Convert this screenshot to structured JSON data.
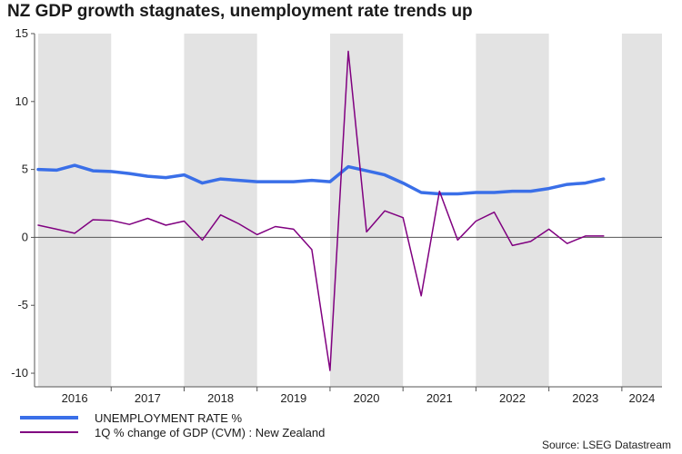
{
  "chart_data": {
    "type": "line",
    "title": "NZ GDP growth stagnates, unemployment rate trends up",
    "x_start": 2016.0,
    "x_step": 0.25,
    "x_range": [
      2015.95,
      2024.55
    ],
    "ylim": [
      -11,
      15
    ],
    "yticks": [
      -10,
      -5,
      0,
      5,
      10,
      15
    ],
    "xticks": [
      "2016",
      "2017",
      "2018",
      "2019",
      "2020",
      "2021",
      "2022",
      "2023",
      "2024"
    ],
    "shaded_years": [
      2016,
      2018,
      2020,
      2022,
      2024
    ],
    "series": [
      {
        "name": "UNEMPLOYMENT RATE %",
        "color": "#3a6fe8",
        "values": [
          5.0,
          4.95,
          5.3,
          4.9,
          4.85,
          4.7,
          4.5,
          4.4,
          4.6,
          4.0,
          4.3,
          4.2,
          4.1,
          4.1,
          4.1,
          4.2,
          4.1,
          5.2,
          4.9,
          4.6,
          4.0,
          3.3,
          3.2,
          3.2,
          3.3,
          3.3,
          3.4,
          3.4,
          3.6,
          3.9,
          4.0,
          4.3
        ]
      },
      {
        "name": "1Q % change of GDP (CVM) : New Zealand",
        "color": "#800080",
        "values": [
          0.9,
          0.6,
          0.3,
          1.3,
          1.25,
          0.95,
          1.4,
          0.9,
          1.2,
          -0.2,
          1.65,
          1.0,
          0.2,
          0.8,
          0.6,
          -0.9,
          -9.8,
          13.7,
          0.4,
          1.95,
          1.45,
          -4.3,
          3.4,
          -0.2,
          1.2,
          1.85,
          -0.6,
          -0.3,
          0.6,
          -0.45,
          0.1,
          0.1
        ]
      }
    ]
  },
  "legend": {
    "unemployment_label": "UNEMPLOYMENT RATE %",
    "gdp_label": "1Q % change of GDP (CVM) : New Zealand"
  },
  "source": "Source: LSEG Datastream"
}
